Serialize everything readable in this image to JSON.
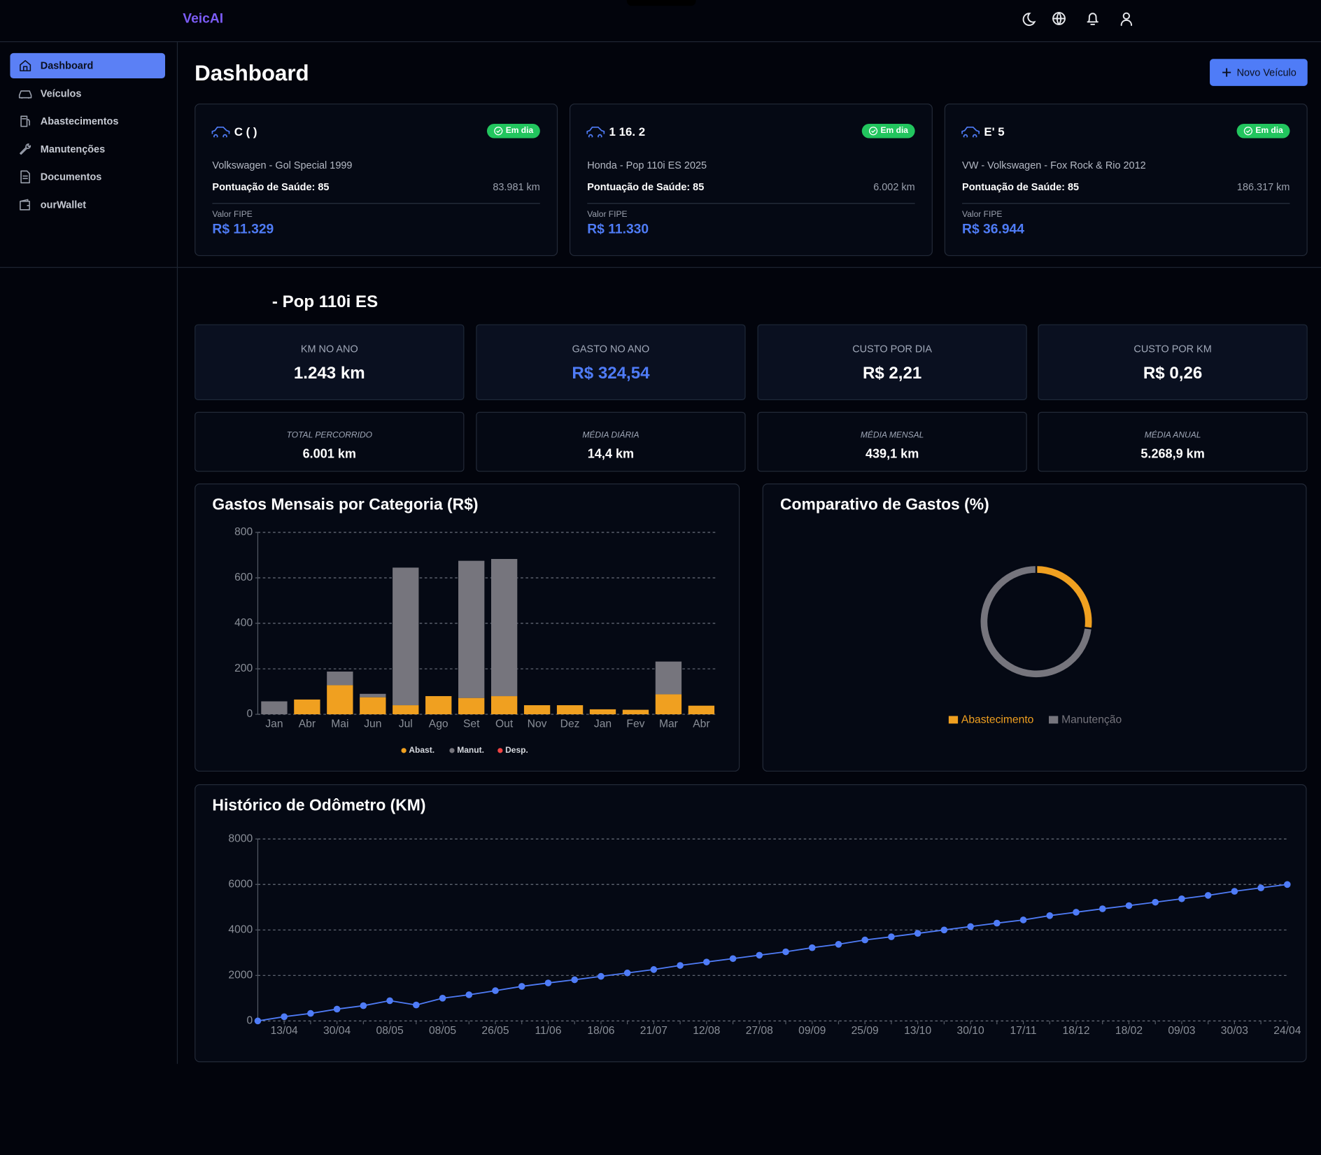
{
  "header": {
    "brand": "VeicAI"
  },
  "sidebar": {
    "items": [
      "Dashboard",
      "Veículos",
      "Abastecimentos",
      "Manutenções",
      "Documentos",
      "ourWallet"
    ]
  },
  "page": {
    "title": "Dashboard",
    "new_button": "Novo Veículo"
  },
  "vehicles": [
    {
      "name": "C ( )",
      "status": "Em dia",
      "model": "Volkswagen - Gol Special 1999",
      "health": "Pontuação de Saúde: 85",
      "km": "83.981 km",
      "fipe_label": "Valor FIPE",
      "fipe": "R$ 11.329"
    },
    {
      "name": "1 16. 2",
      "status": "Em dia",
      "model": "Honda - Pop 110i ES 2025",
      "health": "Pontuação de Saúde: 85",
      "km": "6.002 km",
      "fipe_label": "Valor FIPE",
      "fipe": "R$ 11.330"
    },
    {
      "name": "E' 5",
      "status": "Em dia",
      "model": "VW - Volkswagen - Fox Rock & Rio 2012",
      "health": "Pontuação de Saúde: 85",
      "km": "186.317 km",
      "fipe_label": "Valor FIPE",
      "fipe": "R$ 36.944"
    }
  ],
  "selected_vehicle": "- Pop 110i ES",
  "stats": [
    {
      "label": "KM NO ANO",
      "value": "1.243 km"
    },
    {
      "label": "GASTO NO ANO",
      "value": "R$ 324,54"
    },
    {
      "label": "CUSTO POR DIA",
      "value": "R$ 2,21"
    },
    {
      "label": "CUSTO POR KM",
      "value": "R$ 0,26"
    }
  ],
  "stats_secondary": [
    {
      "label": "TOTAL PERCORRIDO",
      "value": "6.001 km"
    },
    {
      "label": "MÉDIA DIÁRIA",
      "value": "14,4 km"
    },
    {
      "label": "MÉDIA MENSAL",
      "value": "439,1 km"
    },
    {
      "label": "MÉDIA ANUAL",
      "value": "5.268,9 km"
    }
  ],
  "chart_data": [
    {
      "type": "bar",
      "stacked": true,
      "title": "Gastos Mensais por Categoria (R$)",
      "categories": [
        "Jan",
        "Abr",
        "Mai",
        "Jun",
        "Jul",
        "Ago",
        "Set",
        "Out",
        "Nov",
        "Dez",
        "Jan",
        "Fev",
        "Mar",
        "Abr"
      ],
      "series": [
        {
          "name": "Abast.",
          "color": "#f0a020",
          "values": [
            0,
            65,
            128,
            75,
            40,
            80,
            72,
            80,
            40,
            40,
            22,
            20,
            88,
            38
          ]
        },
        {
          "name": "Manut.",
          "color": "#76757d",
          "values": [
            57,
            0,
            60,
            15,
            605,
            0,
            603,
            603,
            0,
            0,
            0,
            0,
            144,
            0
          ]
        },
        {
          "name": "Desp.",
          "color": "#ef4444",
          "values": [
            0,
            0,
            0,
            0,
            0,
            0,
            0,
            0,
            0,
            0,
            0,
            0,
            0,
            0
          ]
        }
      ],
      "ylim": [
        0,
        800
      ],
      "yticks": [
        0,
        200,
        400,
        600,
        800
      ],
      "grid": true
    },
    {
      "type": "doughnut",
      "title": "Comparativo de Gastos (%)",
      "categories": [
        "Abastecimento",
        "Manutenção"
      ],
      "values": [
        27,
        73
      ],
      "colors": [
        "#f0a020",
        "#76757d"
      ]
    },
    {
      "type": "line",
      "title": "Histórico de Odômetro (KM)",
      "categories": [
        null,
        "13/04",
        null,
        "30/04",
        null,
        "08/05",
        null,
        "08/05",
        null,
        "26/05",
        null,
        "11/06",
        null,
        "18/06",
        null,
        "21/07",
        null,
        "12/08",
        null,
        "27/08",
        null,
        "09/09",
        null,
        "25/09",
        null,
        "13/10",
        null,
        "30/10",
        null,
        "17/11",
        null,
        "18/12",
        null,
        "18/02",
        null,
        "09/03",
        null,
        "30/03",
        null,
        "24/04"
      ],
      "values": [
        0,
        185,
        330,
        520,
        670,
        890,
        700,
        1000,
        1150,
        1330,
        1520,
        1670,
        1810,
        1960,
        2110,
        2260,
        2440,
        2590,
        2740,
        2890,
        3040,
        3220,
        3370,
        3560,
        3700,
        3850,
        4000,
        4150,
        4300,
        4440,
        4630,
        4780,
        4930,
        5070,
        5220,
        5370,
        5520,
        5700,
        5850,
        6000
      ],
      "color": "#4f7cf7",
      "ylim": [
        0,
        8000
      ],
      "yticks": [
        0,
        2000,
        4000,
        6000,
        8000
      ],
      "grid": true
    }
  ]
}
